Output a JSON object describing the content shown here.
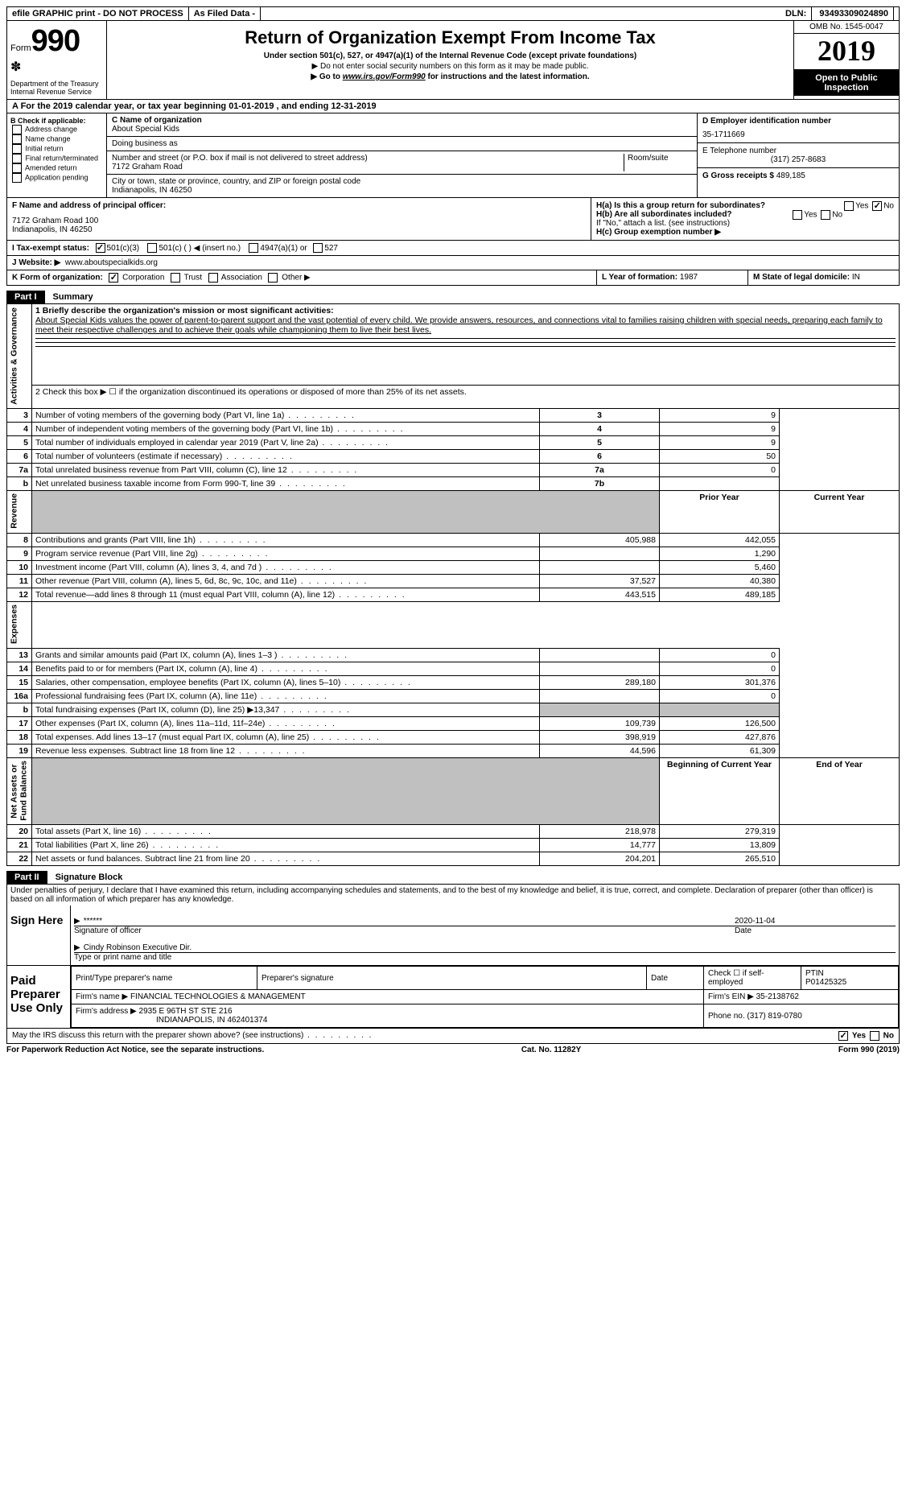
{
  "topbar": {
    "efile": "efile GRAPHIC print - DO NOT PROCESS",
    "asfiled": "As Filed Data -",
    "dln_label": "DLN:",
    "dln": "93493309024890"
  },
  "header": {
    "form_word": "Form",
    "form_num": "990",
    "dept": "Department of the Treasury\nInternal Revenue Service",
    "title": "Return of Organization Exempt From Income Tax",
    "sub": "Under section 501(c), 527, or 4947(a)(1) of the Internal Revenue Code (except private foundations)",
    "note1": "▶ Do not enter social security numbers on this form as it may be made public.",
    "note2_pre": "▶ Go to ",
    "note2_link": "www.irs.gov/Form990",
    "note2_post": " for instructions and the latest information.",
    "omb": "OMB No. 1545-0047",
    "year": "2019",
    "open": "Open to Public Inspection"
  },
  "row_a": "A   For the 2019 calendar year, or tax year beginning 01-01-2019   , and ending 12-31-2019",
  "col_b": {
    "label": "B Check if applicable:",
    "items": [
      "Address change",
      "Name change",
      "Initial return",
      "Final return/terminated",
      "Amended return",
      "Application pending"
    ]
  },
  "col_c": {
    "name_label": "C Name of organization",
    "name": "About Special Kids",
    "dba_label": "Doing business as",
    "street_label": "Number and street (or P.O. box if mail is not delivered to street address)",
    "room_label": "Room/suite",
    "street": "7172 Graham Road",
    "city_label": "City or town, state or province, country, and ZIP or foreign postal code",
    "city": "Indianapolis, IN  46250"
  },
  "col_d": {
    "ein_label": "D Employer identification number",
    "ein": "35-1711669",
    "phone_label": "E Telephone number",
    "phone": "(317) 257-8683",
    "gross_label": "G Gross receipts $",
    "gross": "489,185"
  },
  "row_f": {
    "label": "F  Name and address of principal officer:",
    "addr1": "7172 Graham Road 100",
    "addr2": "Indianapolis, IN  46250"
  },
  "row_h": {
    "ha": "H(a)  Is this a group return for subordinates?",
    "hb": "H(b)  Are all subordinates included?",
    "hnote": "If \"No,\" attach a list. (see instructions)",
    "hc": "H(c)  Group exemption number ▶"
  },
  "row_i": {
    "label": "I   Tax-exempt status:",
    "opt1": "501(c)(3)",
    "opt2": "501(c) (  ) ◀ (insert no.)",
    "opt3": "4947(a)(1) or",
    "opt4": "527"
  },
  "row_j": {
    "label": "J   Website: ▶",
    "val": "www.aboutspecialkids.org"
  },
  "row_k": {
    "label": "K Form of organization:",
    "opts": [
      "Corporation",
      "Trust",
      "Association",
      "Other ▶"
    ],
    "l_label": "L Year of formation:",
    "l_val": "1987",
    "m_label": "M State of legal domicile:",
    "m_val": "IN"
  },
  "part1": {
    "num": "Part I",
    "title": "Summary",
    "line1_label": "1  Briefly describe the organization's mission or most significant activities:",
    "mission": "About Special Kids values the power of parent-to-parent support and the vast potential of every child. We provide answers, resources, and connections vital to families raising children with special needs, preparing each family to meet their respective challenges and to achieve their goals while championing them to live their best lives.",
    "line2": "2   Check this box ▶ ☐ if the organization discontinued its operations or disposed of more than 25% of its net assets.",
    "headers": {
      "prior": "Prior Year",
      "current": "Current Year",
      "begin": "Beginning of Current Year",
      "end": "End of Year"
    },
    "rows_gov": [
      {
        "n": "3",
        "d": "Number of voting members of the governing body (Part VI, line 1a)",
        "k": "3",
        "v": "9"
      },
      {
        "n": "4",
        "d": "Number of independent voting members of the governing body (Part VI, line 1b)",
        "k": "4",
        "v": "9"
      },
      {
        "n": "5",
        "d": "Total number of individuals employed in calendar year 2019 (Part V, line 2a)",
        "k": "5",
        "v": "9"
      },
      {
        "n": "6",
        "d": "Total number of volunteers (estimate if necessary)",
        "k": "6",
        "v": "50"
      },
      {
        "n": "7a",
        "d": "Total unrelated business revenue from Part VIII, column (C), line 12",
        "k": "7a",
        "v": "0"
      },
      {
        "n": "b",
        "d": "Net unrelated business taxable income from Form 990-T, line 39",
        "k": "7b",
        "v": ""
      }
    ],
    "rows_rev": [
      {
        "n": "8",
        "d": "Contributions and grants (Part VIII, line 1h)",
        "p": "405,988",
        "c": "442,055"
      },
      {
        "n": "9",
        "d": "Program service revenue (Part VIII, line 2g)",
        "p": "",
        "c": "1,290"
      },
      {
        "n": "10",
        "d": "Investment income (Part VIII, column (A), lines 3, 4, and 7d )",
        "p": "",
        "c": "5,460"
      },
      {
        "n": "11",
        "d": "Other revenue (Part VIII, column (A), lines 5, 6d, 8c, 9c, 10c, and 11e)",
        "p": "37,527",
        "c": "40,380"
      },
      {
        "n": "12",
        "d": "Total revenue—add lines 8 through 11 (must equal Part VIII, column (A), line 12)",
        "p": "443,515",
        "c": "489,185"
      }
    ],
    "rows_exp": [
      {
        "n": "13",
        "d": "Grants and similar amounts paid (Part IX, column (A), lines 1–3 )",
        "p": "",
        "c": "0"
      },
      {
        "n": "14",
        "d": "Benefits paid to or for members (Part IX, column (A), line 4)",
        "p": "",
        "c": "0"
      },
      {
        "n": "15",
        "d": "Salaries, other compensation, employee benefits (Part IX, column (A), lines 5–10)",
        "p": "289,180",
        "c": "301,376"
      },
      {
        "n": "16a",
        "d": "Professional fundraising fees (Part IX, column (A), line 11e)",
        "p": "",
        "c": "0"
      },
      {
        "n": "b",
        "d": "Total fundraising expenses (Part IX, column (D), line 25) ▶13,347",
        "p": "shade",
        "c": "shade"
      },
      {
        "n": "17",
        "d": "Other expenses (Part IX, column (A), lines 11a–11d, 11f–24e)",
        "p": "109,739",
        "c": "126,500"
      },
      {
        "n": "18",
        "d": "Total expenses. Add lines 13–17 (must equal Part IX, column (A), line 25)",
        "p": "398,919",
        "c": "427,876"
      },
      {
        "n": "19",
        "d": "Revenue less expenses. Subtract line 18 from line 12",
        "p": "44,596",
        "c": "61,309"
      }
    ],
    "rows_net": [
      {
        "n": "20",
        "d": "Total assets (Part X, line 16)",
        "p": "218,978",
        "c": "279,319"
      },
      {
        "n": "21",
        "d": "Total liabilities (Part X, line 26)",
        "p": "14,777",
        "c": "13,809"
      },
      {
        "n": "22",
        "d": "Net assets or fund balances. Subtract line 21 from line 20",
        "p": "204,201",
        "c": "265,510"
      }
    ],
    "vert": {
      "gov": "Activities & Governance",
      "rev": "Revenue",
      "exp": "Expenses",
      "net": "Net Assets or\nFund Balances"
    }
  },
  "part2": {
    "num": "Part II",
    "title": "Signature Block",
    "decl": "Under penalties of perjury, I declare that I have examined this return, including accompanying schedules and statements, and to the best of my knowledge and belief, it is true, correct, and complete. Declaration of preparer (other than officer) is based on all information of which preparer has any knowledge.",
    "sign_here": "Sign Here",
    "stars": "******",
    "sig_officer": "Signature of officer",
    "date_label": "Date",
    "date": "2020-11-04",
    "typed": "Cindy Robinson  Executive Dir.",
    "typed_label": "Type or print name and title",
    "paid": "Paid Preparer Use Only",
    "prep_name_label": "Print/Type preparer's name",
    "prep_sig_label": "Preparer's signature",
    "check_self": "Check ☐ if self-employed",
    "ptin_label": "PTIN",
    "ptin": "P01425325",
    "firm_name_label": "Firm's name    ▶",
    "firm_name": "FINANCIAL TECHNOLOGIES & MANAGEMENT",
    "firm_ein_label": "Firm's EIN ▶",
    "firm_ein": "35-2138762",
    "firm_addr_label": "Firm's address ▶",
    "firm_addr1": "2935 E 96TH ST STE 216",
    "firm_addr2": "INDIANAPOLIS, IN  462401374",
    "firm_phone_label": "Phone no.",
    "firm_phone": "(317) 819-0780",
    "may_irs": "May the IRS discuss this return with the preparer shown above? (see instructions)"
  },
  "footer": {
    "left": "For Paperwork Reduction Act Notice, see the separate instructions.",
    "mid": "Cat. No. 11282Y",
    "right": "Form 990 (2019)"
  }
}
